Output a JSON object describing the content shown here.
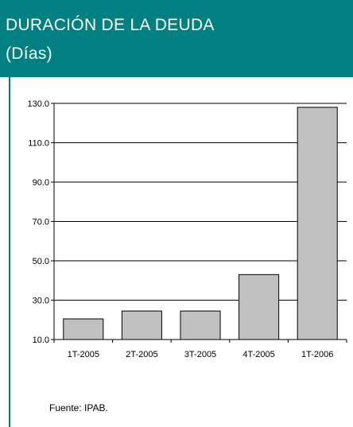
{
  "header": {
    "title_line1": "DURACIÓN DE LA DEUDA",
    "title_line2": "(Días)"
  },
  "colors": {
    "header_bg": "#008080",
    "header_text": "#ffffff",
    "bar_fill": "#c0c0c0",
    "bar_stroke": "#000000"
  },
  "chart_data": {
    "type": "bar",
    "categories": [
      "1T-2005",
      "2T-2005",
      "3T-2005",
      "4T-2005",
      "1T-2006"
    ],
    "values": [
      20.5,
      24.5,
      24.5,
      43.0,
      128.0
    ],
    "ylim": [
      10,
      130
    ],
    "yticks": [
      "10.0",
      "30.0",
      "50.0",
      "70.0",
      "90.0",
      "110.0",
      "130.0"
    ],
    "ytick_values": [
      10,
      30,
      50,
      70,
      90,
      110,
      130
    ],
    "grid": true,
    "legend": "none"
  },
  "footer": {
    "source": "Fuente: IPAB."
  }
}
